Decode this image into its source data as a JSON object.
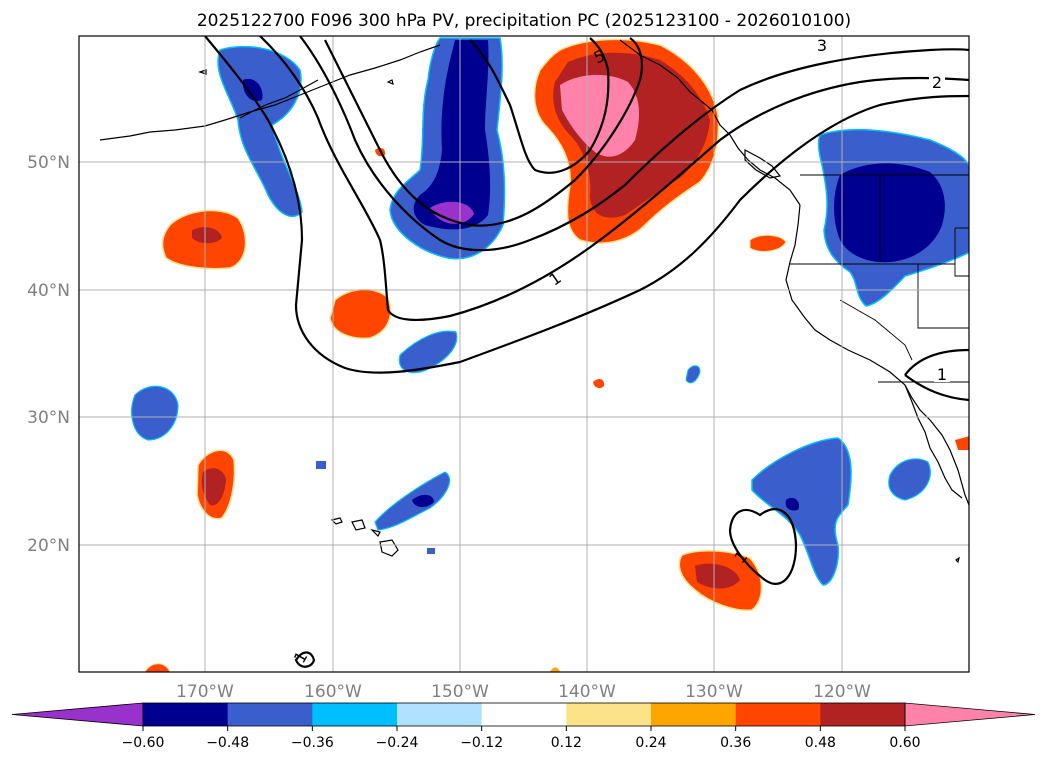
{
  "title": "2025122700 F096 300 hPa PV, precipitation PC (2025123100 - 2026010100)",
  "map": {
    "lat_labels": [
      "50°N",
      "40°N",
      "30°N",
      "20°N"
    ],
    "lon_labels": [
      "170°W",
      "160°W",
      "150°W",
      "140°W",
      "130°W",
      "120°W"
    ],
    "contour_labels": [
      "3",
      "2",
      "1",
      "1",
      "1",
      "5",
      "1",
      "1"
    ]
  },
  "colorbar": {
    "tick_labels": [
      "−0.60",
      "−0.48",
      "−0.36",
      "−0.24",
      "−0.12",
      "0.12",
      "0.24",
      "0.36",
      "0.48",
      "0.60"
    ],
    "colors": [
      "#9932cc",
      "#000090",
      "#3a5fcd",
      "#00bfff",
      "#b0e2ff",
      "#ffffff",
      "#fce38a",
      "#ffa500",
      "#ff4500",
      "#b22222",
      "#ff82ab"
    ]
  },
  "colors": {
    "neg_strong": "#000090",
    "neg_mid": "#3a5fcd",
    "neg_light": "#00bfff",
    "neg_extreme": "#9932cc",
    "pos_light": "#fce38a",
    "pos_mid": "#ffa500",
    "pos_strong": "#ff4500",
    "pos_stronger": "#b22222",
    "pos_extreme": "#ff82ab",
    "grid": "#b0b0b0",
    "axis_text": "#808080"
  }
}
